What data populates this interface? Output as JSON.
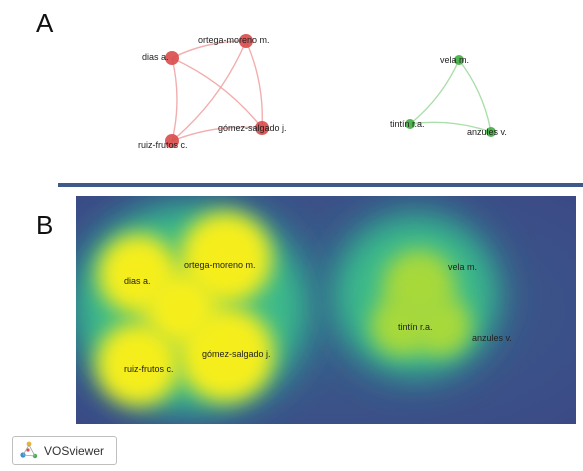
{
  "panels": {
    "a_letter": "A",
    "b_letter": "B"
  },
  "network": {
    "clusters": [
      {
        "color": "#d94a4a",
        "link_color": "#f0a0a0",
        "nodes": [
          {
            "id": "dias",
            "label": "dias a."
          },
          {
            "id": "ortega",
            "label": "ortega-moreno m."
          },
          {
            "id": "ruiz",
            "label": "ruiz-frutos c."
          },
          {
            "id": "gomez",
            "label": "gómez-salgado j."
          }
        ],
        "links": [
          [
            "dias",
            "ortega"
          ],
          [
            "dias",
            "ruiz"
          ],
          [
            "dias",
            "gomez"
          ],
          [
            "ortega",
            "ruiz"
          ],
          [
            "ortega",
            "gomez"
          ],
          [
            "ruiz",
            "gomez"
          ]
        ]
      },
      {
        "color": "#3fae3f",
        "link_color": "#9bd89b",
        "nodes": [
          {
            "id": "vela",
            "label": "vela m."
          },
          {
            "id": "tintin",
            "label": "tintín r.a."
          },
          {
            "id": "anzules",
            "label": "anzules v."
          }
        ],
        "links": [
          [
            "vela",
            "tintin"
          ],
          [
            "vela",
            "anzules"
          ],
          [
            "tintin",
            "anzules"
          ]
        ]
      }
    ]
  },
  "density": {
    "colors": {
      "low": "#3b4f8c",
      "mid": "#3dbb8a",
      "high": "#f5ee1e"
    },
    "labels": [
      {
        "id": "dias",
        "label": "dias a."
      },
      {
        "id": "ortega",
        "label": "ortega-moreno m."
      },
      {
        "id": "ruiz",
        "label": "ruiz-frutos c."
      },
      {
        "id": "gomez",
        "label": "gómez-salgado j."
      },
      {
        "id": "vela",
        "label": "vela m."
      },
      {
        "id": "tintin",
        "label": "tintín r.a."
      },
      {
        "id": "anzules",
        "label": "anzules v."
      }
    ]
  },
  "branding": {
    "name": "VOSviewer",
    "icon": "vosviewer-logo-icon"
  }
}
